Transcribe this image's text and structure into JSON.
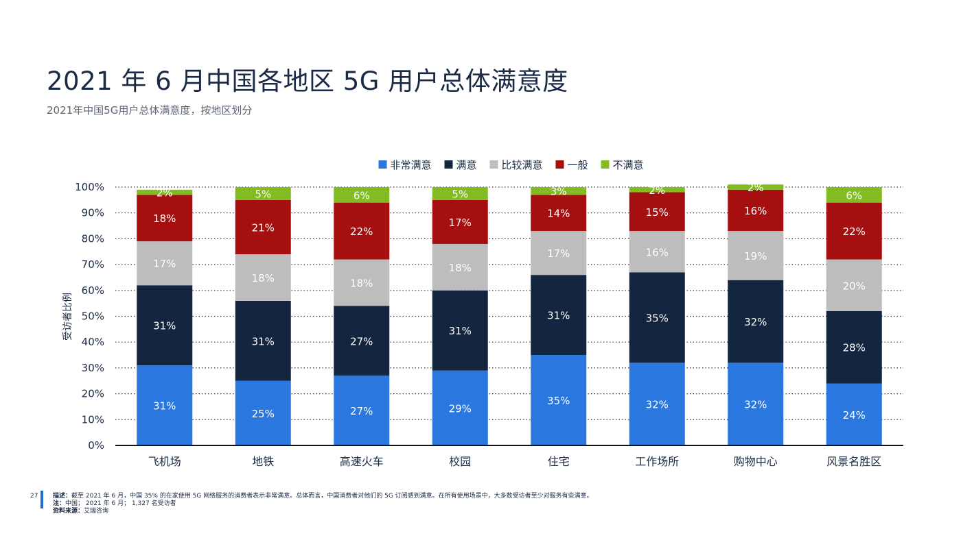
{
  "title": "2021 年 6 月中国各地区 5G 用户总体满意度",
  "subtitle": "2021年中国5G用户总体满意度，按地区划分",
  "footer": {
    "page_number": "27",
    "desc_label": "描述：",
    "desc_text": "截至 2021 年 6 月，中国 35% 的在家使用 5G 网络服务的消费者表示非常满意。总体而言，中国消费者对他们的 5G 订阅感到满意。在所有使用场景中，大多数受访者至少对服务有些满意。",
    "note_label": "注：",
    "note_text": "中国； 2021 年 6 月； 1,327 名受访者",
    "source_label": "资料来源：",
    "source_text": "艾瑞咨询"
  },
  "colors": {
    "very_satisfied": "#2a77e0",
    "satisfied": "#13253f",
    "somewhat_satisfied": "#bdbdbd",
    "neutral": "#a50f10",
    "dissatisfied": "#82bc22"
  },
  "chart_data": {
    "type": "bar",
    "stacked": true,
    "categories": [
      "飞机场",
      "地铁",
      "高速火车",
      "校园",
      "住宅",
      "工作场所",
      "购物中心",
      "风景名胜区"
    ],
    "series": [
      {
        "name": "非常满意",
        "values": [
          31,
          25,
          27,
          29,
          35,
          32,
          32,
          24
        ]
      },
      {
        "name": "满意",
        "values": [
          31,
          31,
          27,
          31,
          31,
          35,
          32,
          28
        ]
      },
      {
        "name": "比较满意",
        "values": [
          17,
          18,
          18,
          18,
          17,
          16,
          19,
          20
        ]
      },
      {
        "name": "一般",
        "values": [
          18,
          21,
          22,
          17,
          14,
          15,
          16,
          22
        ]
      },
      {
        "name": "不满意",
        "values": [
          2,
          5,
          6,
          5,
          3,
          2,
          2,
          6
        ]
      }
    ],
    "title": "",
    "xlabel": "",
    "ylabel": "受访者比例",
    "ylim": [
      0,
      100
    ],
    "yticks": [
      "0%",
      "10%",
      "20%",
      "30%",
      "40%",
      "50%",
      "60%",
      "70%",
      "80%",
      "90%",
      "100%"
    ],
    "value_suffix": "%",
    "grid": "horizontal-dotted",
    "legend_position": "top-center"
  }
}
